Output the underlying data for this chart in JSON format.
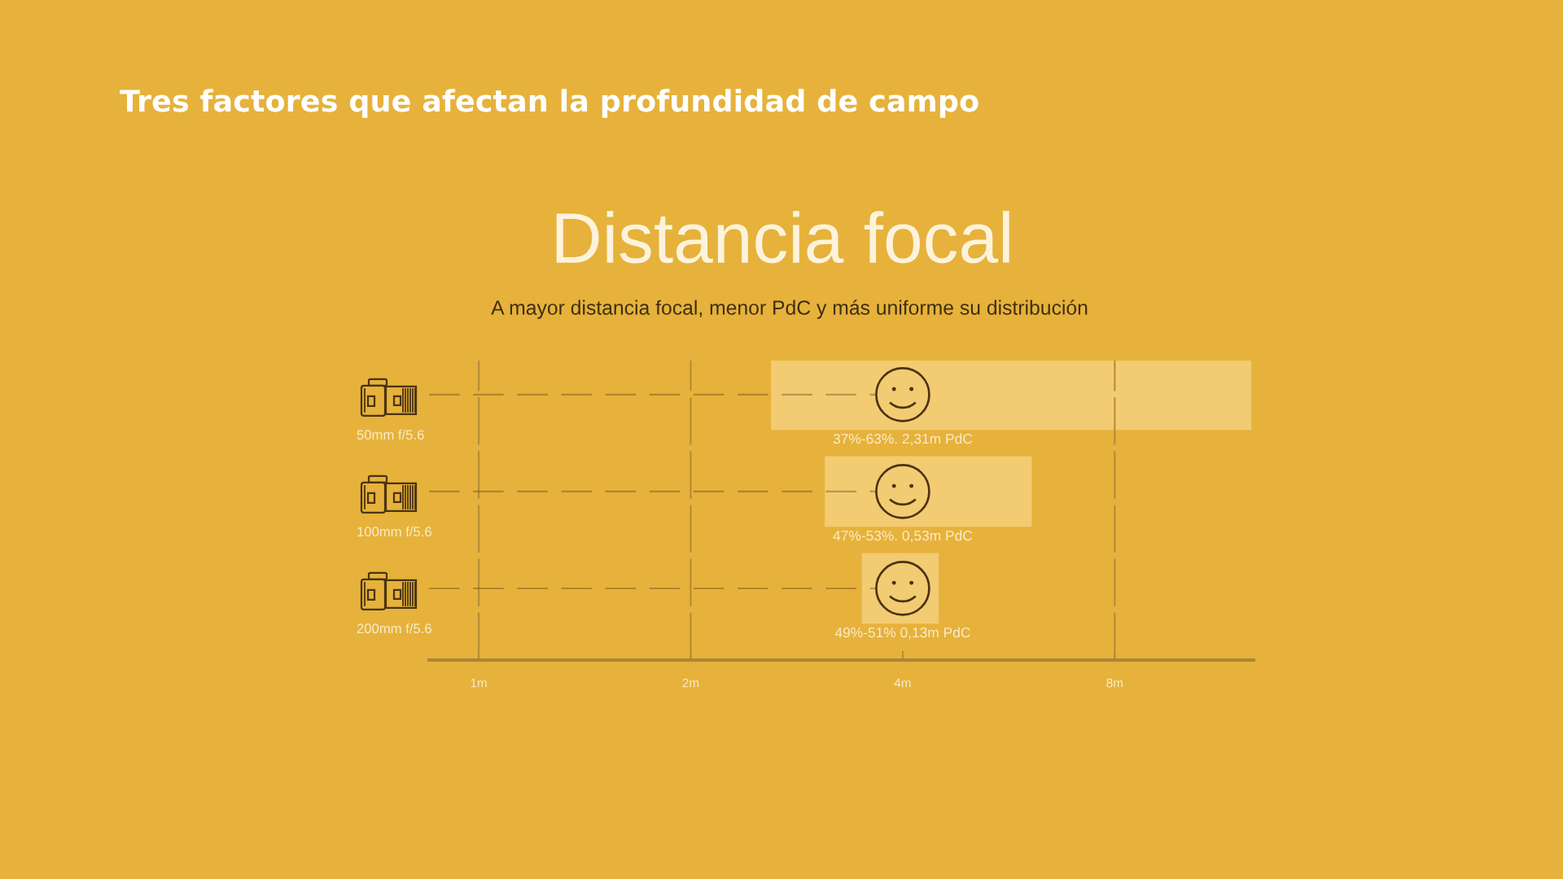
{
  "chart_data": {
    "type": "bar",
    "orientation": "horizontal",
    "title": "Distancia focal",
    "subtitle": "A mayor distancia focal, menor PdC y más uniforme su distribución",
    "annotations": [
      "Tres factores que afectan la profundidad de campo",
      "37%-63%. 2,31m PdC",
      "47%-53%. 0,53m PdC",
      "49%-51% 0,13m PdC"
    ],
    "categories": [
      "50mm f/5.6",
      "100mm f/5.6",
      "200mm f/5.6"
    ],
    "series": [
      {
        "color": "#f2cb72",
        "base": [
          2.6,
          3.1,
          3.5
        ],
        "values": [
          9.9,
          3.0,
          1.0
        ]
      },
      {
        "type": "lollipop",
        "color": "#4a3310",
        "values": [
          4,
          4,
          4
        ],
        "marker": "circle",
        "line_style": "dashed"
      }
    ],
    "log": "x",
    "xlim": [
      0.85,
      12.6
    ],
    "xticks": [
      {
        "value": 1,
        "label": "1m"
      },
      {
        "value": 2,
        "label": "2m"
      },
      {
        "value": 4,
        "label": "4m"
      },
      {
        "value": 8,
        "label": "8m"
      }
    ],
    "ref_lines": [
      {
        "axis": "x",
        "value": 1,
        "line_style": "dashed",
        "color": "#b38a35"
      },
      {
        "axis": "x",
        "value": 2,
        "line_style": "dashed",
        "color": "#b38a35"
      },
      {
        "axis": "x",
        "value": 8,
        "line_style": "dashed",
        "color": "#b38a35"
      }
    ]
  }
}
